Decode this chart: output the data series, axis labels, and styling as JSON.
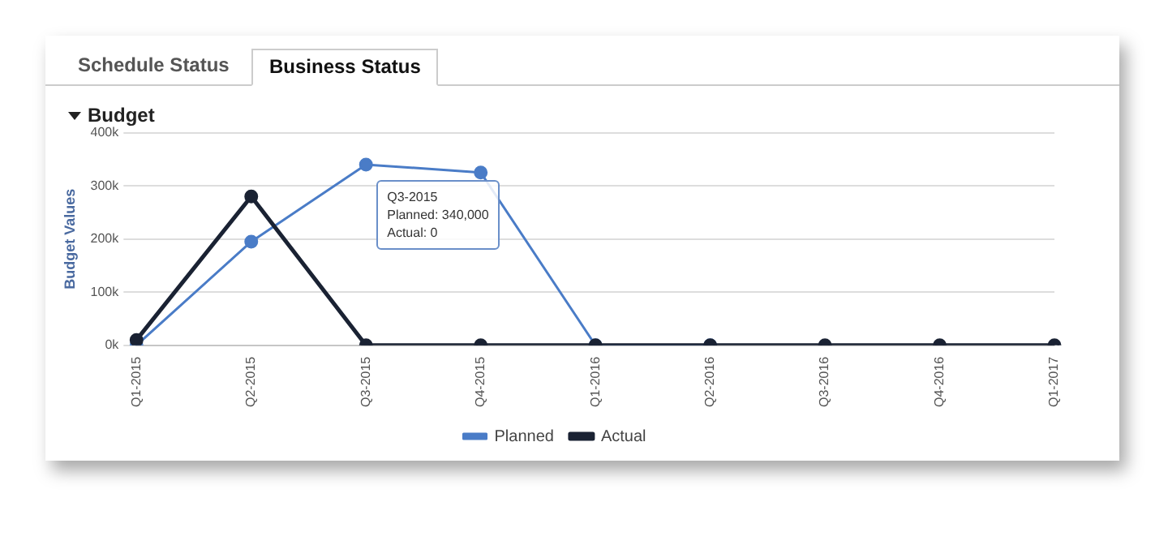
{
  "chart_data": {
    "type": "line",
    "title": "Budget",
    "ylabel": "Budget Values",
    "categories": [
      "Q1-2015",
      "Q2-2015",
      "Q3-2015",
      "Q4-2015",
      "Q1-2016",
      "Q2-2016",
      "Q3-2016",
      "Q4-2016",
      "Q1-2017"
    ],
    "series": [
      {
        "name": "Planned",
        "color": "#4a7cc7",
        "values": [
          0,
          195000,
          340000,
          325000,
          0,
          0,
          null,
          null,
          null
        ]
      },
      {
        "name": "Actual",
        "color": "#1a2233",
        "values": [
          10000,
          280000,
          0,
          0,
          0,
          0,
          0,
          0,
          0
        ]
      }
    ],
    "ylim": [
      0,
      400000
    ],
    "yticks": [
      {
        "value": 0,
        "label": "0k"
      },
      {
        "value": 100000,
        "label": "100k"
      },
      {
        "value": 200000,
        "label": "200k"
      },
      {
        "value": 300000,
        "label": "300k"
      },
      {
        "value": 400000,
        "label": "400k"
      }
    ],
    "grid": "y",
    "legend": "bottom",
    "marker": "circle",
    "line_style": "solid",
    "annotations": [
      "Schedule Status",
      "Business Status",
      {
        "text": "Q3-2015\nPlanned: 340,000\nActual: 0",
        "x": "Q3-2015",
        "y": 340000
      }
    ]
  }
}
